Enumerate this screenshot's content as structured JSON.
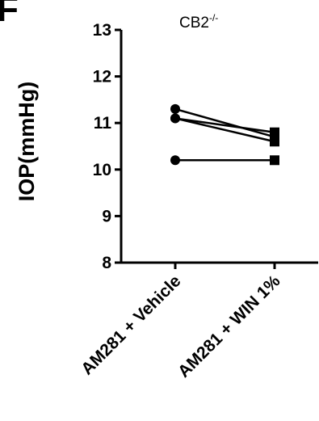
{
  "panel_letter": "F",
  "chart_data": {
    "type": "scatter",
    "title": "CB2",
    "title_superscript": "-/-",
    "ylabel": "IOP(mmHg)",
    "xlabel": "",
    "ylim": [
      8,
      13
    ],
    "yticks": [
      "8",
      "9",
      "10",
      "11",
      "12",
      "13"
    ],
    "categories": [
      "AM281 + Vehicle",
      "AM281 + WIN 1%"
    ],
    "paired_series": [
      {
        "values": [
          11.3,
          10.7
        ]
      },
      {
        "values": [
          11.1,
          10.8
        ]
      },
      {
        "values": [
          11.1,
          10.6
        ]
      },
      {
        "values": [
          10.2,
          10.2
        ]
      }
    ],
    "markers": [
      "circle",
      "square"
    ],
    "grid": false
  }
}
